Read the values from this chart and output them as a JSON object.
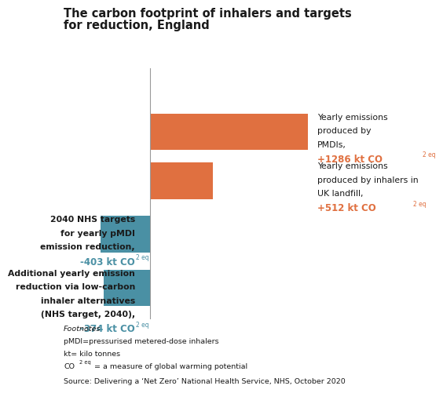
{
  "title_line1": "The carbon footprint of inhalers and targets",
  "title_line2": "for reduction, England",
  "bars": [
    {
      "label": "PMDI",
      "value": 1286,
      "color": "#E07040"
    },
    {
      "label": "Landfill",
      "value": 512,
      "color": "#E07040"
    },
    {
      "label": "NHS_target",
      "value": -403,
      "color": "#4A90A4"
    },
    {
      "label": "Low_carbon",
      "value": -374,
      "color": "#4A90A4"
    }
  ],
  "right_annot_lines": [
    [
      "Yearly emissions",
      "produced by",
      "PMDIs,"
    ],
    [
      "Yearly emissions",
      "produced by inhalers in",
      "UK landfill,"
    ]
  ],
  "right_annot_values": [
    "+1286 kt CO",
    "+512 kt CO"
  ],
  "right_annot_subs": [
    "2 eq",
    "2 eq"
  ],
  "left_annot_lines": [
    [
      "2040 NHS targets",
      "for yearly pMDI",
      "emission reduction,"
    ],
    [
      "Additional yearly emission",
      "reduction via low-carbon",
      "inhaler alternatives",
      "(NHS target, 2040),"
    ]
  ],
  "left_annot_values": [
    "-403 kt CO",
    "-374 kt CO"
  ],
  "left_annot_subs": [
    "2 eq",
    "2 eq"
  ],
  "footnotes_title": "Footnotes",
  "footnote1": "pMDI=pressurised metered-dose inhalers",
  "footnote2": "kt= kilo tonnes",
  "footnote3_pre": "CO",
  "footnote3_sub": "2 eq",
  "footnote3_post": "= a measure of global warming potential",
  "source": "Source: Delivering a ‘Net Zero’ National Health Service, NHS, October 2020",
  "orange": "#E07040",
  "blue": "#4A90A4",
  "black": "#1a1a1a",
  "vline_color": "#999999",
  "bg": "#ffffff"
}
